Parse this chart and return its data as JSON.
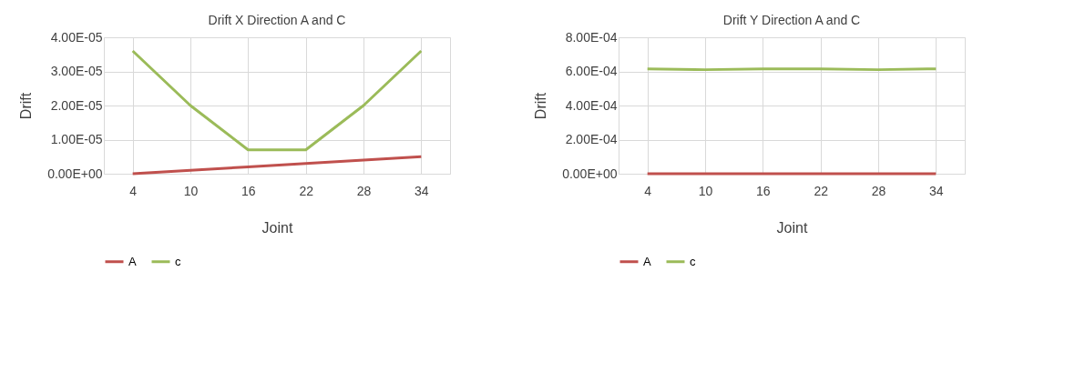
{
  "chart_data": [
    {
      "type": "line",
      "title": "Drift X Direction A and C",
      "xlabel": "Joint",
      "ylabel": "Drift",
      "categories": [
        "4",
        "10",
        "16",
        "22",
        "28",
        "34"
      ],
      "series": [
        {
          "name": "A",
          "color": "#c0504d",
          "values": [
            0,
            1e-06,
            2e-06,
            3e-06,
            4e-06,
            5e-06
          ]
        },
        {
          "name": "c",
          "color": "#9bbb59",
          "values": [
            3.6e-05,
            2e-05,
            7e-06,
            7e-06,
            2e-05,
            3.6e-05
          ]
        }
      ],
      "ylim": [
        0,
        4e-05
      ],
      "yticks": [
        {
          "value": 0,
          "label": "0.00E+00"
        },
        {
          "value": 1e-05,
          "label": "1.00E-05"
        },
        {
          "value": 2e-05,
          "label": "2.00E-05"
        },
        {
          "value": 3e-05,
          "label": "3.00E-05"
        },
        {
          "value": 4e-05,
          "label": "4.00E-05"
        }
      ],
      "grid": true,
      "legend": "bottom",
      "marker": "none",
      "line_style": "solid"
    },
    {
      "type": "line",
      "title": "Drift Y Direction A and C",
      "xlabel": "Joint",
      "ylabel": "Drift",
      "categories": [
        "4",
        "10",
        "16",
        "22",
        "28",
        "34"
      ],
      "series": [
        {
          "name": "A",
          "color": "#c0504d",
          "values": [
            0,
            0,
            0,
            0,
            0,
            0
          ]
        },
        {
          "name": "c",
          "color": "#9bbb59",
          "values": [
            0.000615,
            0.00061,
            0.000615,
            0.000615,
            0.00061,
            0.000615
          ]
        }
      ],
      "ylim": [
        0,
        0.0008
      ],
      "yticks": [
        {
          "value": 0,
          "label": "0.00E+00"
        },
        {
          "value": 0.0002,
          "label": "2.00E-04"
        },
        {
          "value": 0.0004,
          "label": "4.00E-04"
        },
        {
          "value": 0.0006,
          "label": "6.00E-04"
        },
        {
          "value": 0.0008,
          "label": "8.00E-04"
        }
      ],
      "grid": true,
      "legend": "bottom",
      "marker": "none",
      "line_style": "solid"
    }
  ]
}
